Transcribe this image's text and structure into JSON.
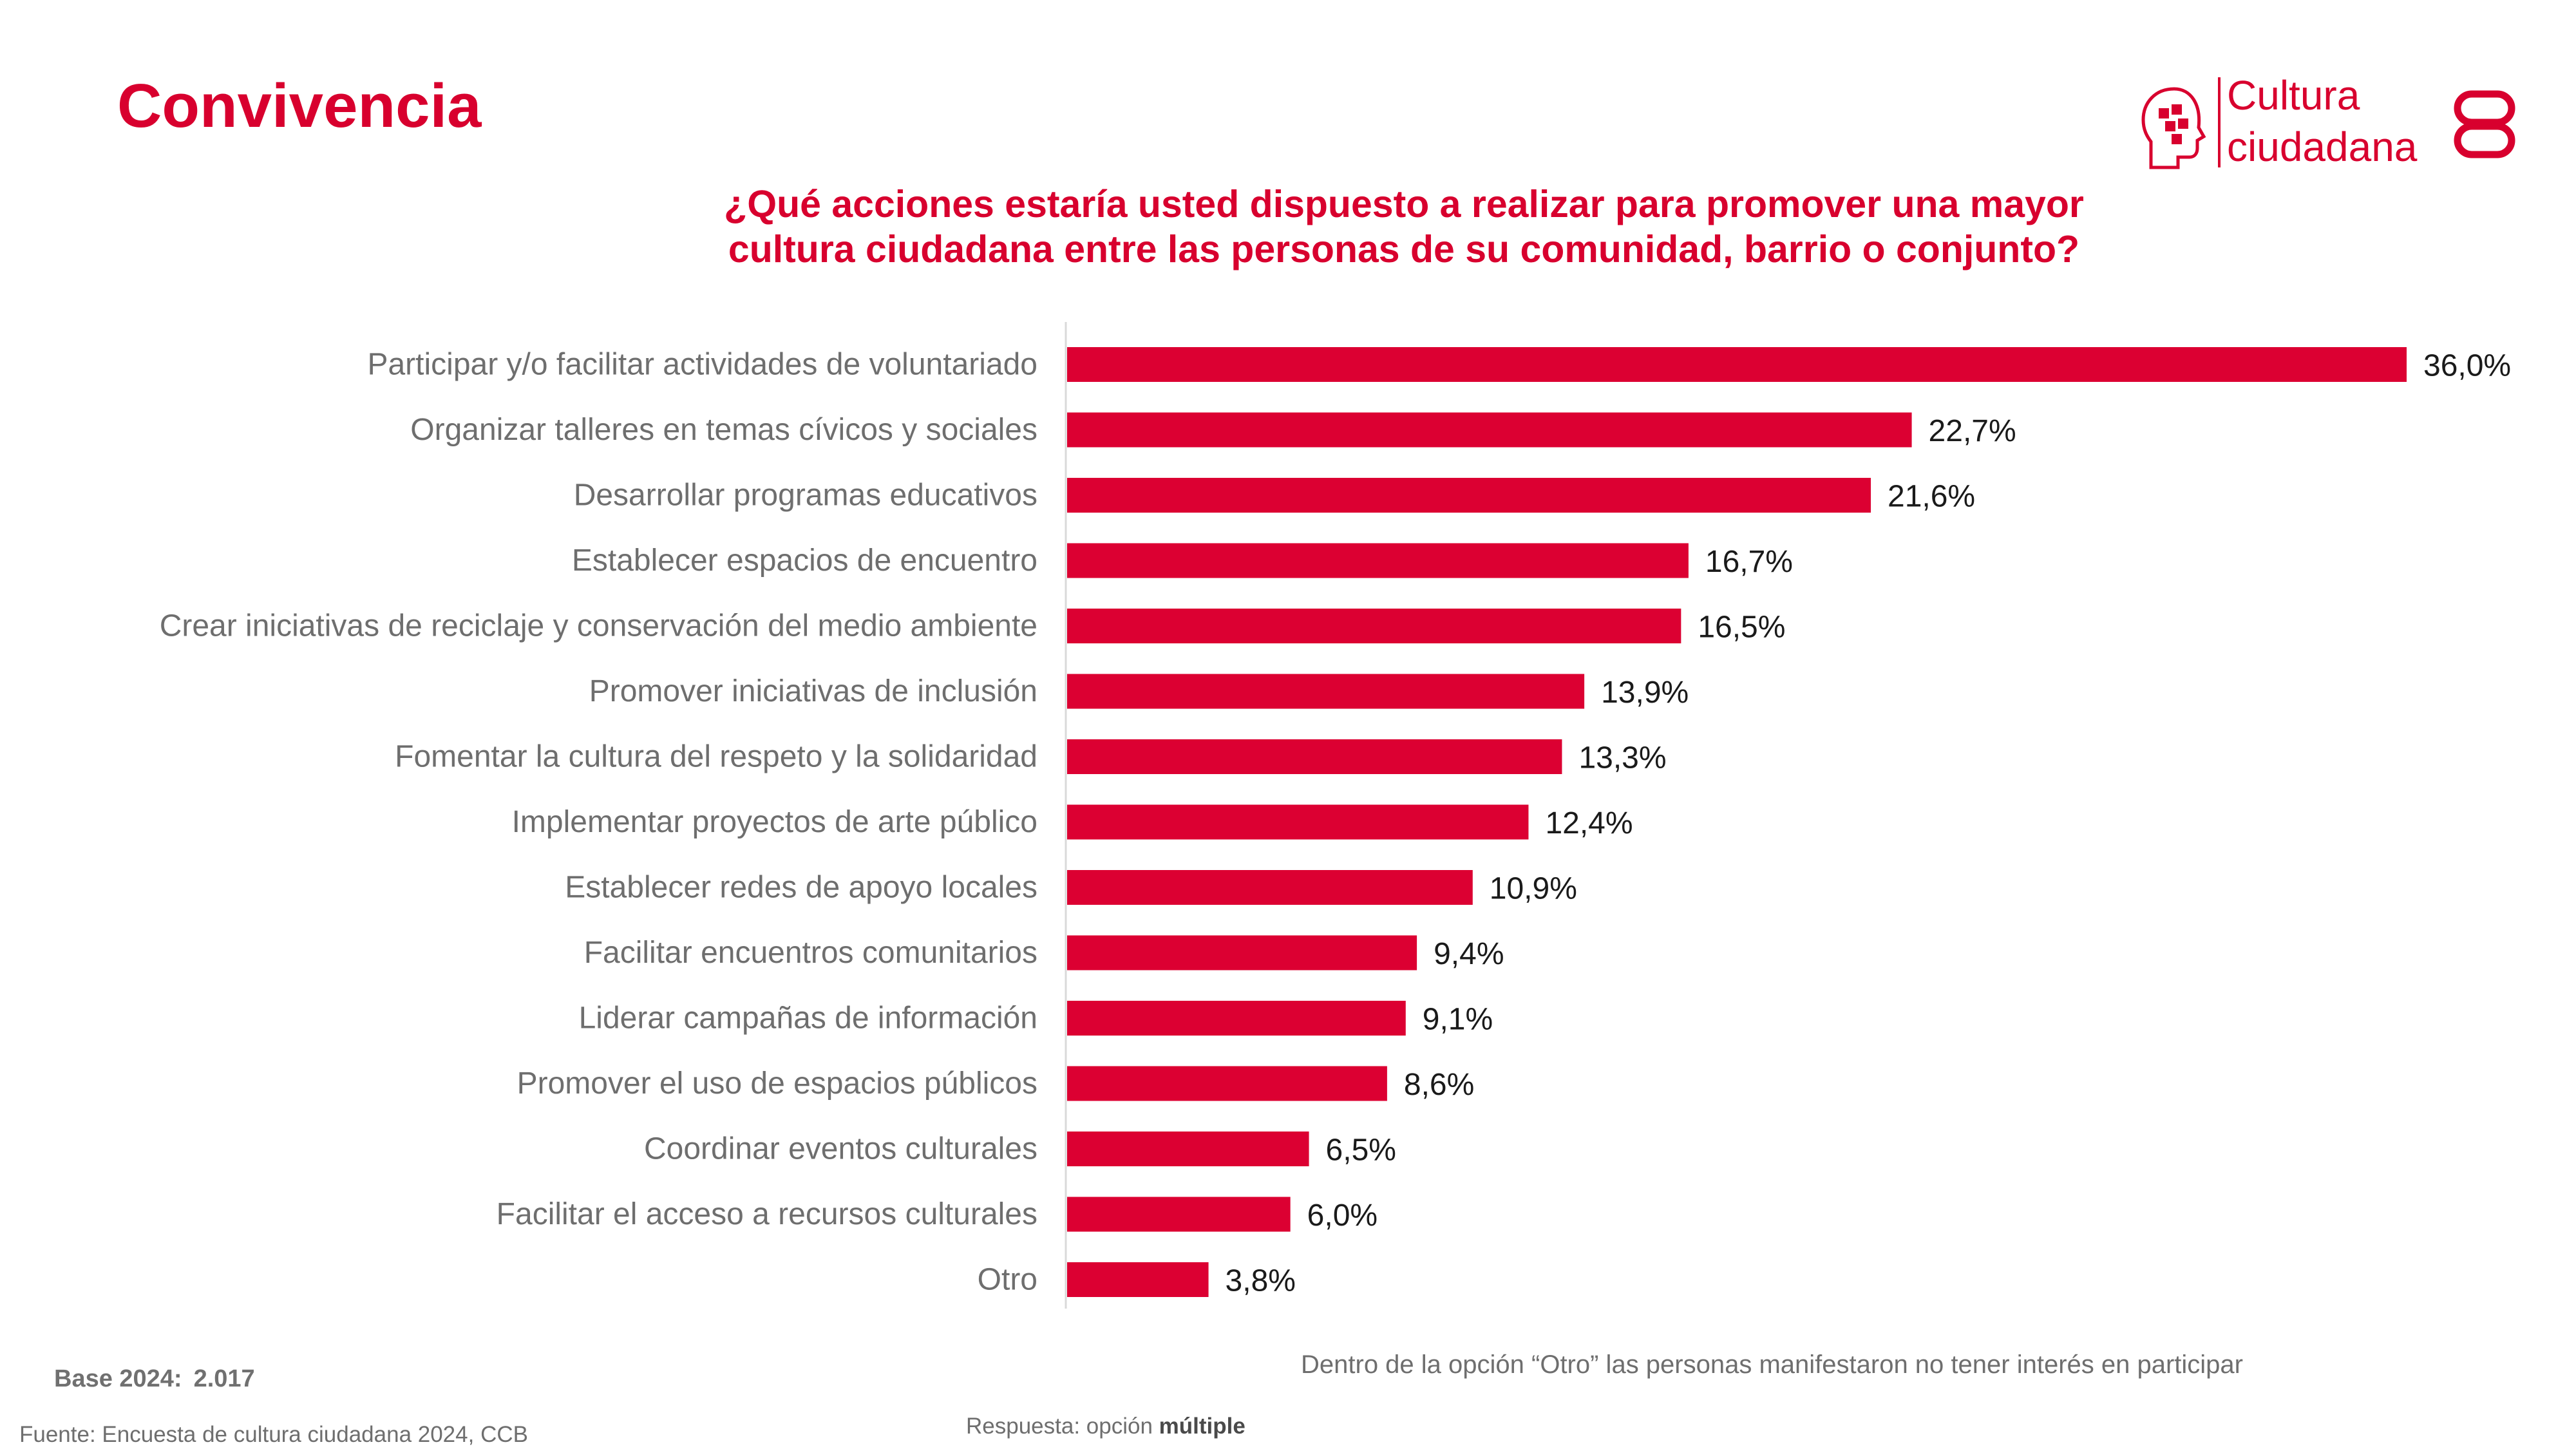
{
  "header": {
    "title": "Convivencia",
    "logo_line1": "Cultura",
    "logo_line2": "ciudadana"
  },
  "question": {
    "line1": "¿Qué acciones estaría usted dispuesto a realizar para promover una mayor",
    "line2": "cultura ciudadana entre las personas de su comunidad, barrio o conjunto?"
  },
  "chart_data": {
    "type": "bar",
    "orientation": "horizontal",
    "categories": [
      "Participar y/o facilitar actividades de voluntariado",
      "Organizar talleres en temas cívicos y sociales",
      "Desarrollar programas educativos",
      "Establecer espacios de encuentro",
      "Crear iniciativas de reciclaje y conservación del medio ambiente",
      "Promover iniciativas de inclusión",
      "Fomentar la cultura del respeto y la solidaridad",
      "Implementar proyectos de arte público",
      "Establecer redes de apoyo locales",
      "Facilitar encuentros comunitarios",
      "Liderar campañas de información",
      "Promover el uso de espacios públicos",
      "Coordinar eventos culturales",
      "Facilitar el acceso a recursos culturales",
      "Otro"
    ],
    "values": [
      36.0,
      22.7,
      21.6,
      16.7,
      16.5,
      13.9,
      13.3,
      12.4,
      10.9,
      9.4,
      9.1,
      8.6,
      6.5,
      6.0,
      3.8
    ],
    "value_labels": [
      "36,0%",
      "22,7%",
      "21,6%",
      "16,7%",
      "16,5%",
      "13,9%",
      "13,3%",
      "12,4%",
      "10,9%",
      "9,4%",
      "9,1%",
      "8,6%",
      "6,5%",
      "6,0%",
      "3,8%"
    ],
    "unit": "%",
    "xlim": [
      0,
      36
    ],
    "bar_color": "#dc0032",
    "grid": false,
    "legend": "none"
  },
  "footer": {
    "note": "Dentro de la opción “Otro” las personas manifestaron no tener interés en participar",
    "base_label": "Base 2024:",
    "base_value": "2.017",
    "respuesta_prefix": "Respuesta: opción",
    "respuesta_bold": "múltiple",
    "fuente": "Fuente: Encuesta de cultura ciudadana 2024, CCB"
  },
  "colors": {
    "brand_red": "#d8002e",
    "label_gray": "#6e6e6e"
  }
}
